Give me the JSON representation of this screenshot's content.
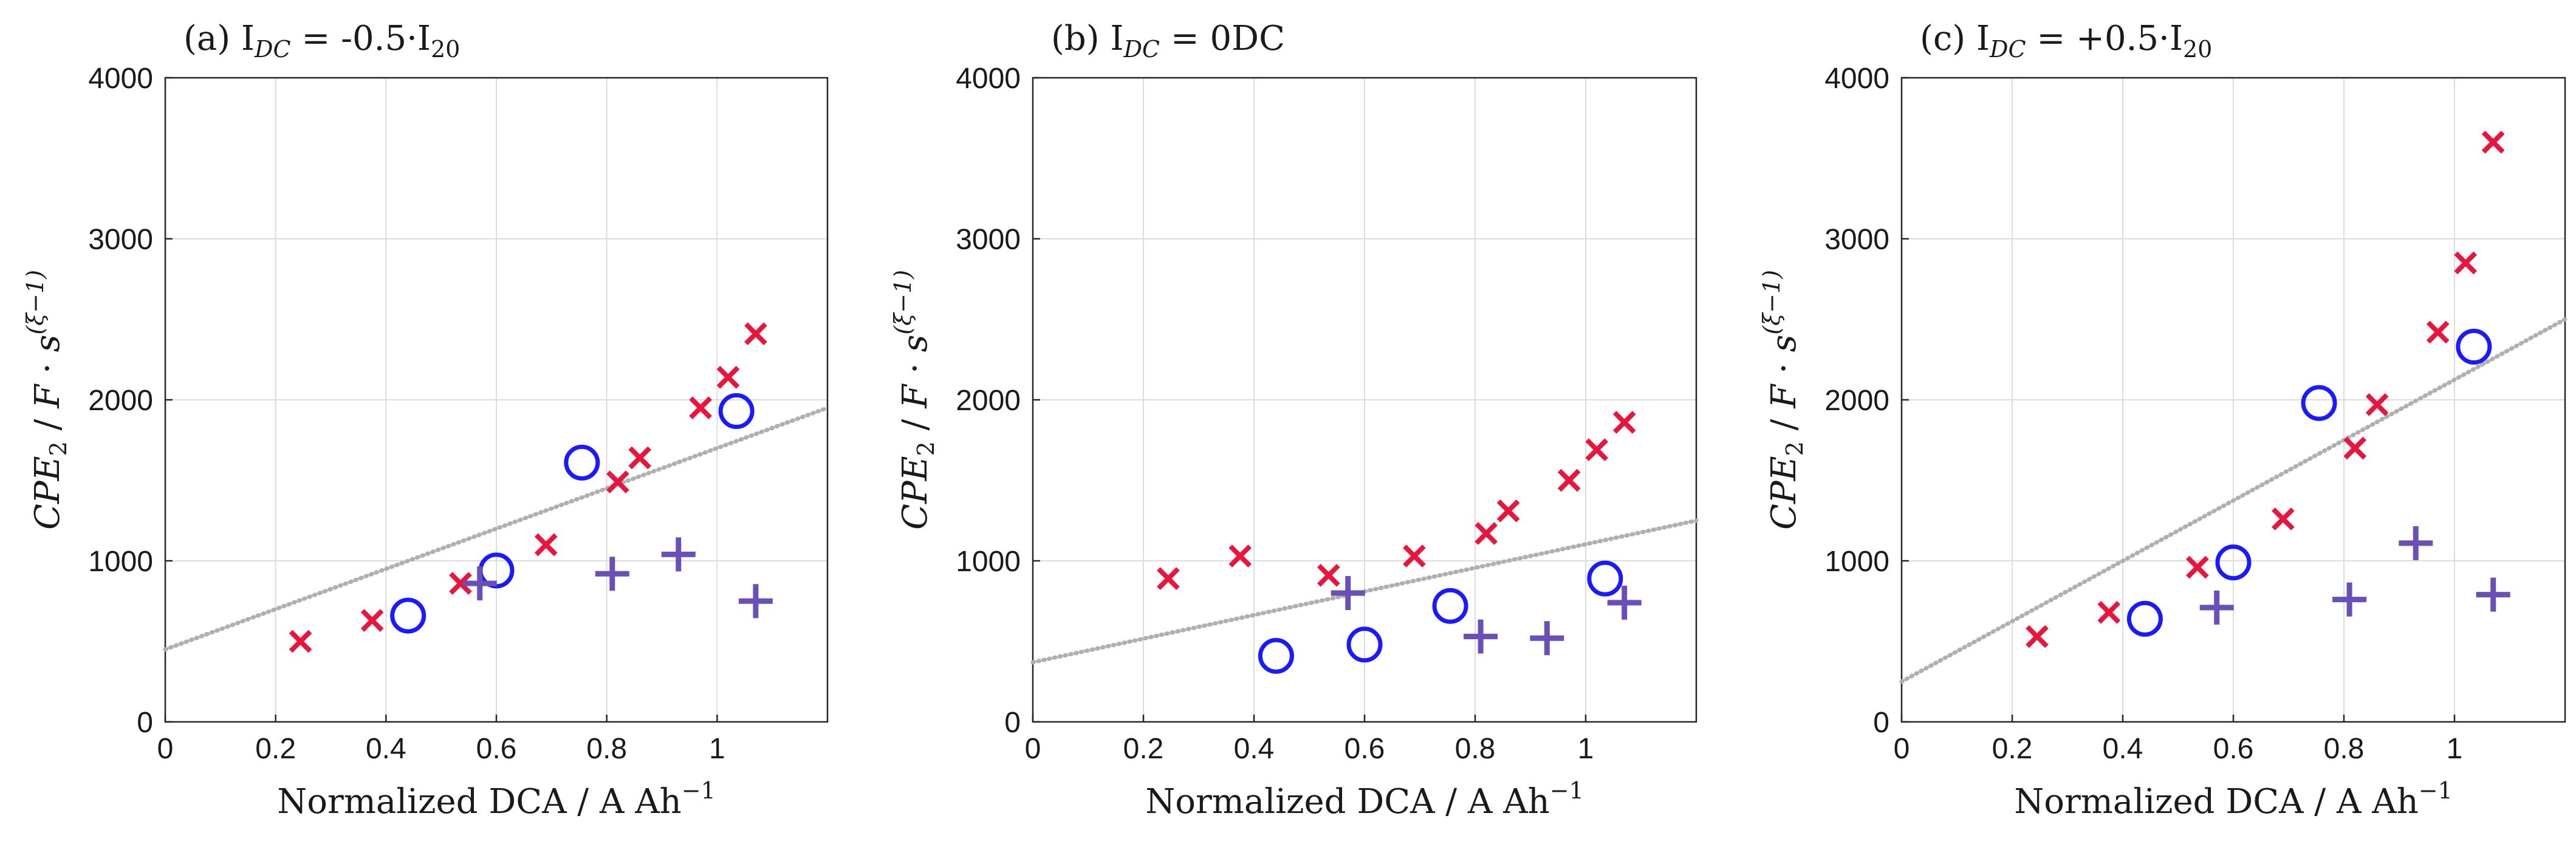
{
  "chart_data": [
    {
      "type": "scatter",
      "title": "(a) I_DC = -0.5·I_20",
      "title_parts": {
        "prefix": "(a) I",
        "sub": "DC",
        "middle": " = -0.5·I",
        "sub2": "20"
      },
      "xlabel": "Normalized DCA / A Ah⁻¹",
      "ylabel": "CPE₂ / F · s^(ξ−1)",
      "xlim": [
        0,
        1.2
      ],
      "ylim": [
        0,
        4000
      ],
      "xticks": [
        "0",
        "0.2",
        "0.4",
        "0.6",
        "0.8",
        "1"
      ],
      "yticks": [
        "0",
        "1000",
        "2000",
        "3000",
        "4000"
      ],
      "grid": true,
      "series": [
        {
          "name": "x-markers",
          "marker": "x",
          "color": "#e8163c",
          "points": [
            [
              0.245,
              500
            ],
            [
              0.375,
              630
            ],
            [
              0.535,
              860
            ],
            [
              0.69,
              1100
            ],
            [
              0.82,
              1490
            ],
            [
              0.86,
              1640
            ],
            [
              0.97,
              1950
            ],
            [
              1.02,
              2140
            ],
            [
              1.07,
              2410
            ]
          ]
        },
        {
          "name": "circle-markers",
          "marker": "o",
          "color": "#1a1aff",
          "points": [
            [
              0.44,
              660
            ],
            [
              0.6,
              940
            ],
            [
              0.755,
              1610
            ],
            [
              1.035,
              1930
            ]
          ]
        },
        {
          "name": "plus-markers",
          "marker": "+",
          "color": "#6a4fb8",
          "points": [
            [
              0.57,
              860
            ],
            [
              0.81,
              920
            ],
            [
              0.93,
              1040
            ],
            [
              1.07,
              750
            ]
          ]
        }
      ],
      "trendline": {
        "style": "dotted",
        "color": "#b0b0b0",
        "x": [
          0,
          1.2
        ],
        "y": [
          450,
          1950
        ]
      }
    },
    {
      "type": "scatter",
      "title": "(b) I_DC = 0DC",
      "title_parts": {
        "prefix": "(b) I",
        "sub": "DC",
        "middle": " = 0DC",
        "sub2": ""
      },
      "xlabel": "Normalized DCA / A Ah⁻¹",
      "ylabel": "CPE₂ / F · s^(ξ−1)",
      "xlim": [
        0,
        1.2
      ],
      "ylim": [
        0,
        4000
      ],
      "xticks": [
        "0",
        "0.2",
        "0.4",
        "0.6",
        "0.8",
        "1"
      ],
      "yticks": [
        "0",
        "1000",
        "2000",
        "3000",
        "4000"
      ],
      "grid": true,
      "series": [
        {
          "name": "x-markers",
          "marker": "x",
          "color": "#e8163c",
          "points": [
            [
              0.245,
              890
            ],
            [
              0.375,
              1030
            ],
            [
              0.535,
              910
            ],
            [
              0.69,
              1030
            ],
            [
              0.82,
              1170
            ],
            [
              0.86,
              1310
            ],
            [
              0.97,
              1500
            ],
            [
              1.02,
              1690
            ],
            [
              1.07,
              1860
            ]
          ]
        },
        {
          "name": "circle-markers",
          "marker": "o",
          "color": "#1a1aff",
          "points": [
            [
              0.44,
              410
            ],
            [
              0.6,
              480
            ],
            [
              0.755,
              720
            ],
            [
              1.035,
              890
            ]
          ]
        },
        {
          "name": "plus-markers",
          "marker": "+",
          "color": "#6a4fb8",
          "points": [
            [
              0.57,
              800
            ],
            [
              0.81,
              530
            ],
            [
              0.93,
              520
            ],
            [
              1.07,
              740
            ]
          ]
        }
      ],
      "trendline": {
        "style": "dotted",
        "color": "#b0b0b0",
        "x": [
          0,
          1.2
        ],
        "y": [
          370,
          1250
        ]
      }
    },
    {
      "type": "scatter",
      "title": "(c) I_DC = +0.5·I_20",
      "title_parts": {
        "prefix": "(c) I",
        "sub": "DC",
        "middle": " = +0.5·I",
        "sub2": "20"
      },
      "xlabel": "Normalized DCA / A Ah⁻¹",
      "ylabel": "CPE₂ / F · s^(ξ−1)",
      "xlim": [
        0,
        1.2
      ],
      "ylim": [
        0,
        4000
      ],
      "xticks": [
        "0",
        "0.2",
        "0.4",
        "0.6",
        "0.8",
        "1"
      ],
      "yticks": [
        "0",
        "1000",
        "2000",
        "3000",
        "4000"
      ],
      "grid": true,
      "series": [
        {
          "name": "x-markers",
          "marker": "x",
          "color": "#e8163c",
          "points": [
            [
              0.245,
              530
            ],
            [
              0.375,
              680
            ],
            [
              0.535,
              960
            ],
            [
              0.69,
              1260
            ],
            [
              0.82,
              1700
            ],
            [
              0.86,
              1970
            ],
            [
              0.97,
              2420
            ],
            [
              1.02,
              2850
            ],
            [
              1.07,
              3600
            ]
          ]
        },
        {
          "name": "circle-markers",
          "marker": "o",
          "color": "#1a1aff",
          "points": [
            [
              0.44,
              640
            ],
            [
              0.6,
              990
            ],
            [
              0.755,
              1980
            ],
            [
              1.035,
              2330
            ]
          ]
        },
        {
          "name": "plus-markers",
          "marker": "+",
          "color": "#6a4fb8",
          "points": [
            [
              0.57,
              710
            ],
            [
              0.81,
              760
            ],
            [
              0.93,
              1110
            ],
            [
              1.07,
              790
            ]
          ]
        }
      ],
      "trendline": {
        "style": "dotted",
        "color": "#b0b0b0",
        "x": [
          0,
          1.2
        ],
        "y": [
          250,
          2500
        ]
      }
    }
  ]
}
